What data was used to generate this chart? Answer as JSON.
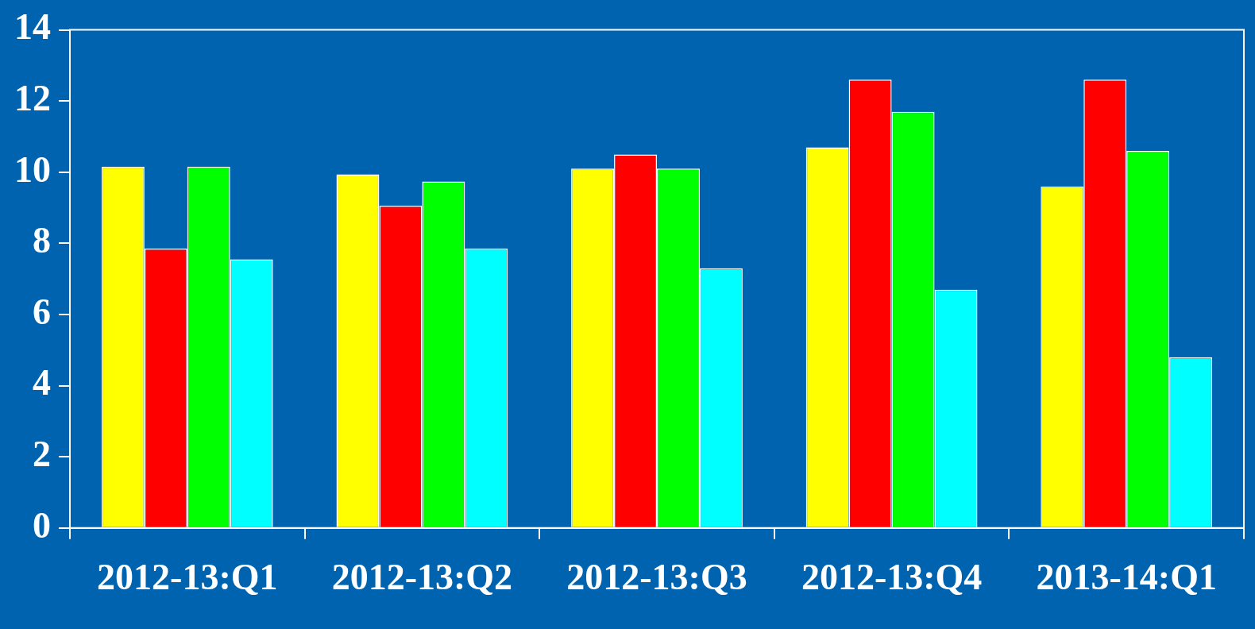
{
  "chart_data": {
    "type": "bar",
    "categories": [
      "2012-13:Q1",
      "2012-13:Q2",
      "2012-13:Q3",
      "2012-13:Q4",
      "2013-14:Q1"
    ],
    "series": [
      {
        "color": "#ffff00",
        "values": [
          10.15,
          9.94,
          10.1,
          10.7,
          9.6
        ]
      },
      {
        "color": "#ff0000",
        "values": [
          7.85,
          9.06,
          10.5,
          12.6,
          12.6
        ]
      },
      {
        "color": "#00ff00",
        "values": [
          10.15,
          9.74,
          10.1,
          11.7,
          10.6
        ]
      },
      {
        "color": "#00ffff",
        "values": [
          7.55,
          7.85,
          7.3,
          6.7,
          4.8
        ]
      }
    ],
    "ylim": [
      0,
      14
    ],
    "yticks": [
      0,
      2,
      4,
      6,
      8,
      10,
      12,
      14
    ],
    "grid": false,
    "legend": false
  }
}
